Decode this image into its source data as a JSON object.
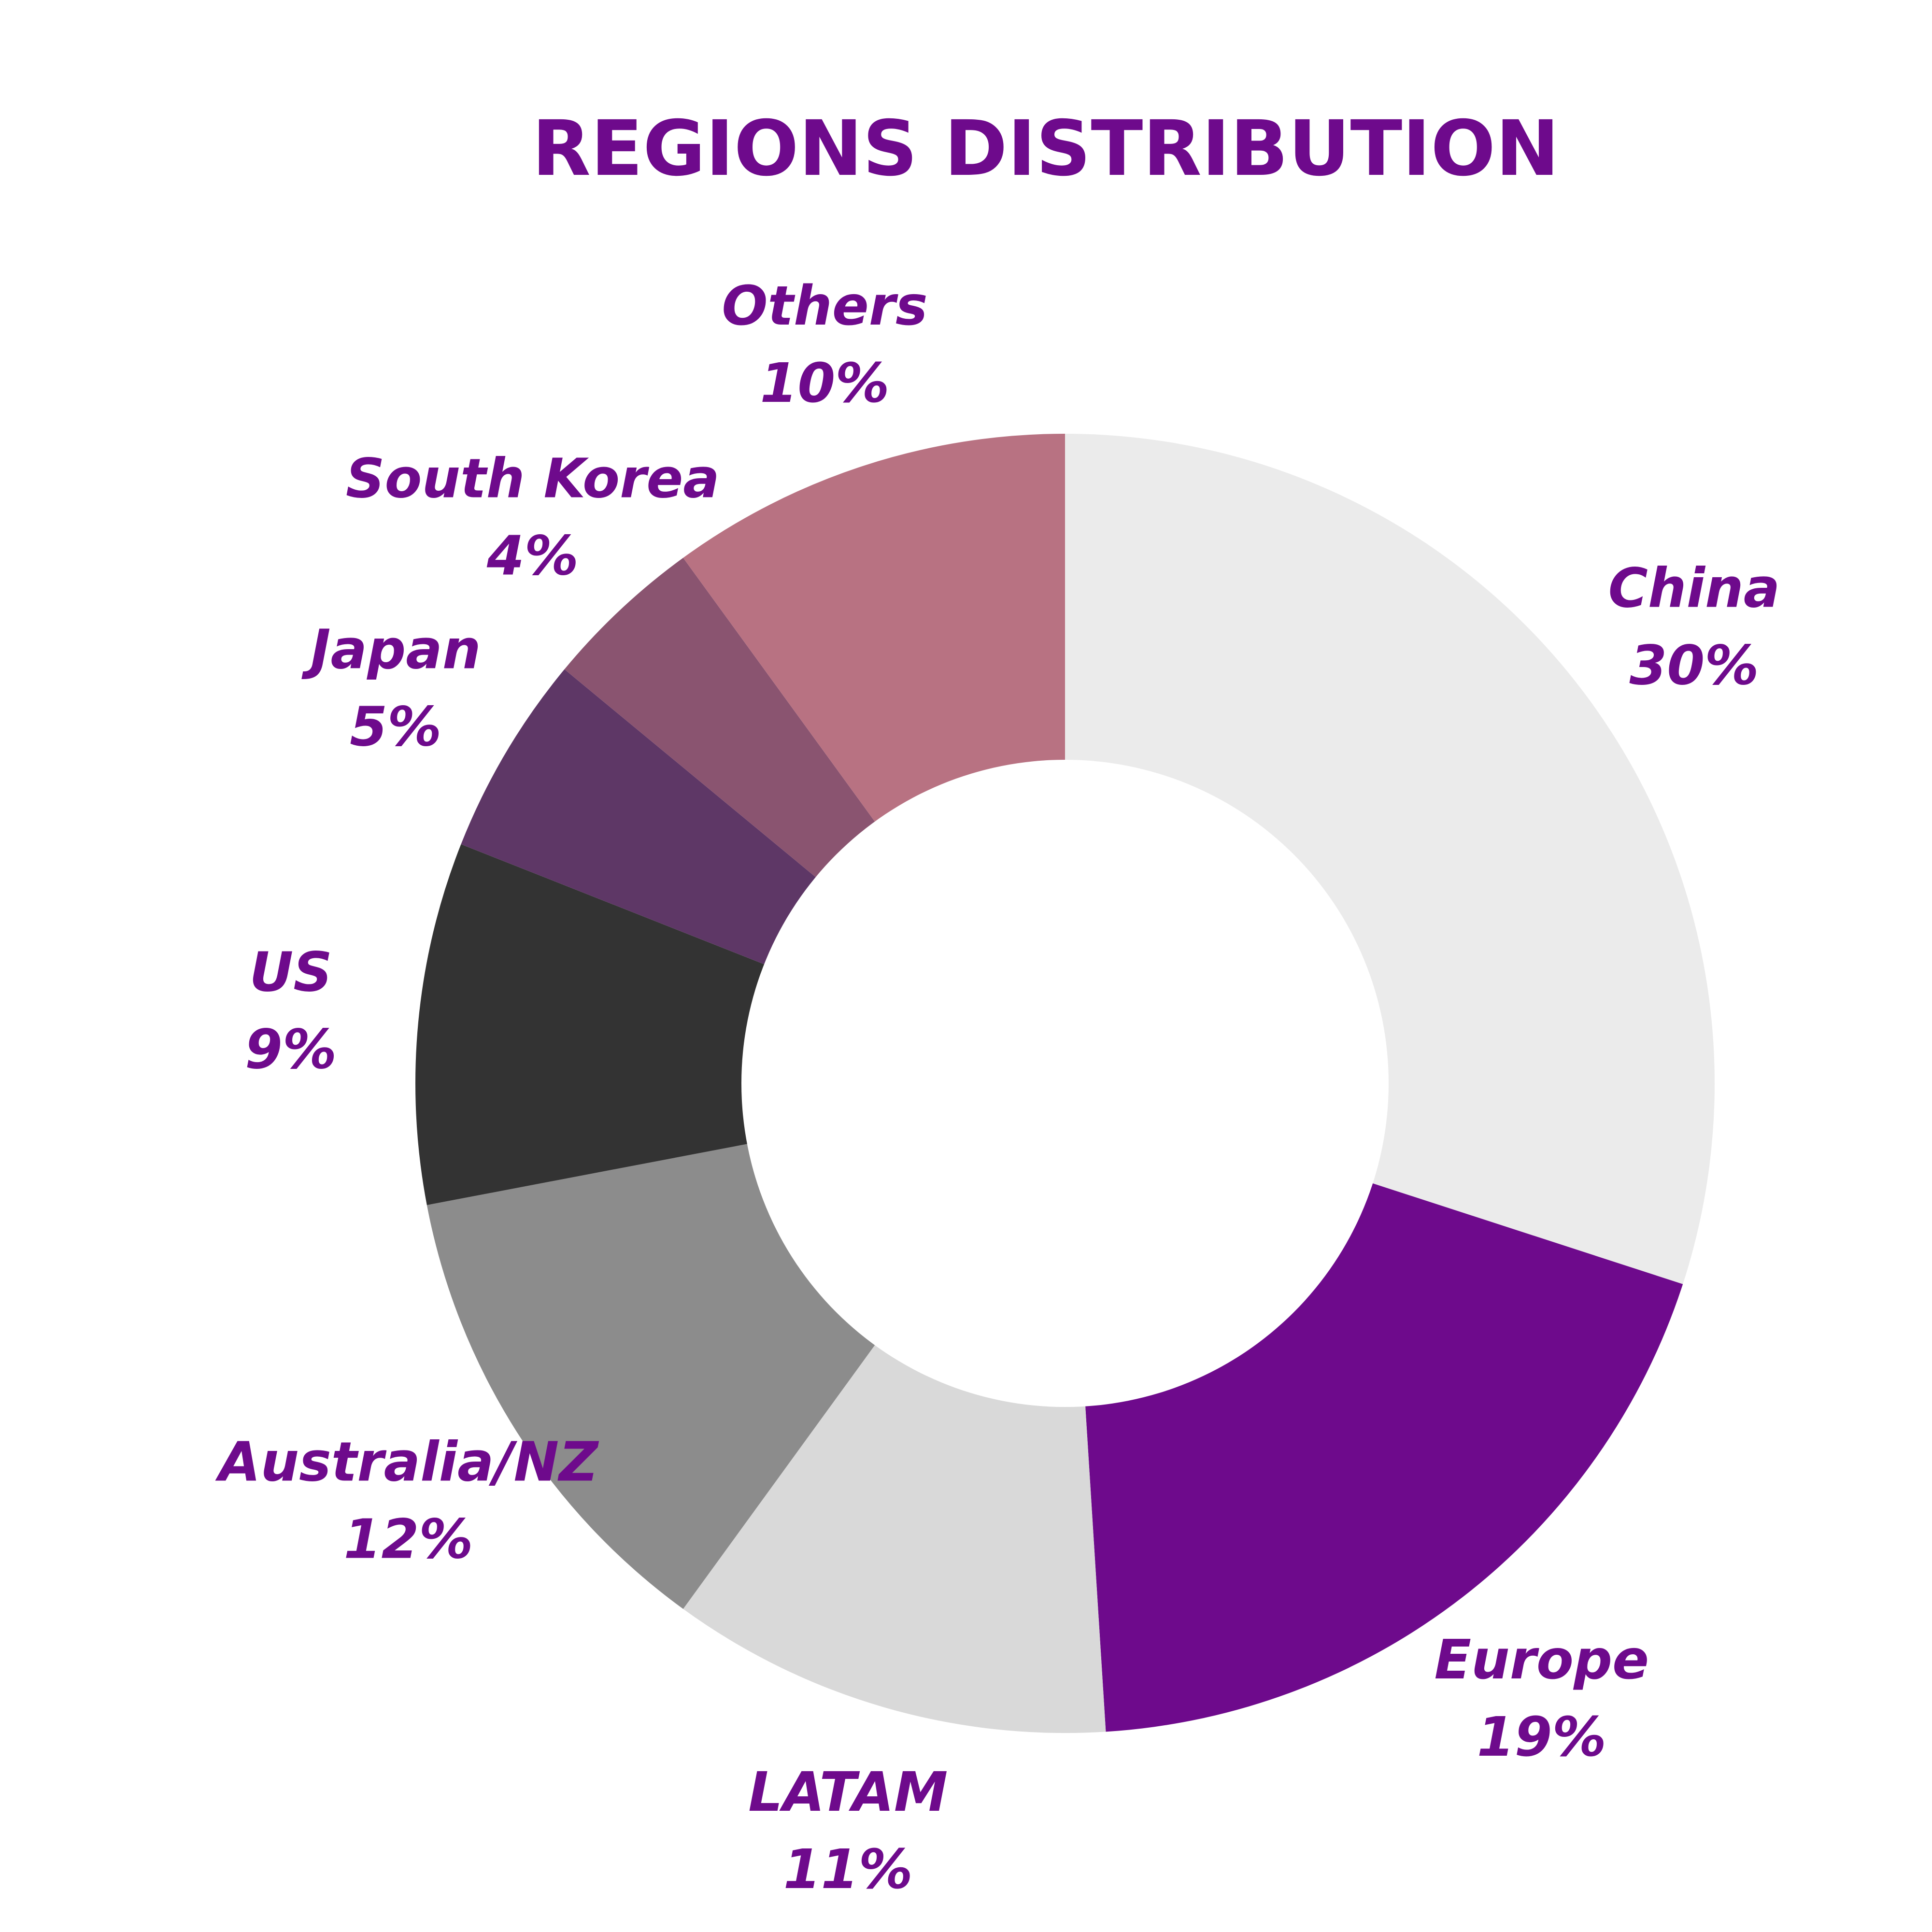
{
  "colors": {
    "title": "#6E0A8C",
    "label": "#6E0A8C",
    "hole": "#FFFFFF"
  },
  "chart_data": {
    "type": "pie",
    "style": "donut",
    "title": "REGIONS DISTRIBUTION",
    "start_angle": "12 o'clock",
    "direction": "clockwise",
    "slices": [
      {
        "name": "China",
        "label": "China",
        "value": 30,
        "value_label": "30%",
        "color": "#EBEBEB"
      },
      {
        "name": "Europe",
        "label": "Europe",
        "value": 19,
        "value_label": "19%",
        "color": "#6E0A8C"
      },
      {
        "name": "LATAM",
        "label": "LATAM",
        "value": 11,
        "value_label": "11%",
        "color": "#D9D9D9"
      },
      {
        "name": "Australia/NZ",
        "label": "Australia/NZ",
        "value": 12,
        "value_label": "12%",
        "color": "#8C8C8C"
      },
      {
        "name": "US",
        "label": "US",
        "value": 9,
        "value_label": "9%",
        "color": "#333333"
      },
      {
        "name": "Japan",
        "label": "Japan",
        "value": 5,
        "value_label": "5%",
        "color": "#5E3766"
      },
      {
        "name": "South Korea",
        "label": "South Korea",
        "value": 4,
        "value_label": "4%",
        "color": "#8A5470"
      },
      {
        "name": "Others",
        "label": "Others",
        "value": 10,
        "value_label": "10%",
        "color": "#B87282"
      }
    ]
  }
}
